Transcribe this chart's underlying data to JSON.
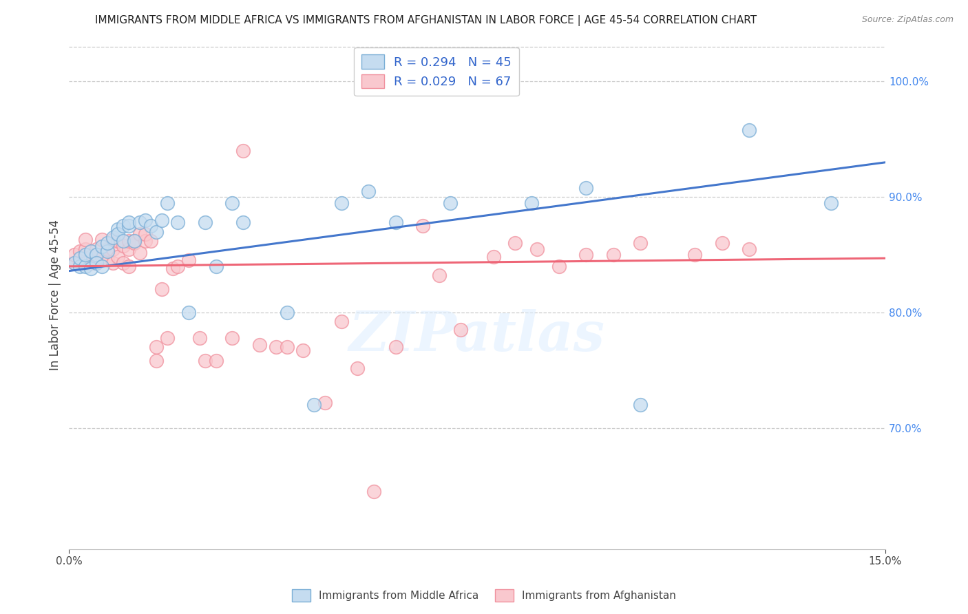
{
  "title": "IMMIGRANTS FROM MIDDLE AFRICA VS IMMIGRANTS FROM AFGHANISTAN IN LABOR FORCE | AGE 45-54 CORRELATION CHART",
  "source": "Source: ZipAtlas.com",
  "ylabel": "In Labor Force | Age 45-54",
  "legend_r_blue": "R = 0.294",
  "legend_n_blue": "N = 45",
  "legend_r_pink": "R = 0.029",
  "legend_n_pink": "N = 67",
  "legend_label_blue": "Immigrants from Middle Africa",
  "legend_label_pink": "Immigrants from Afghanistan",
  "blue_color": "#7aaed6",
  "blue_fill": "#c5dcf0",
  "pink_color": "#f0919e",
  "pink_fill": "#f9c8ce",
  "blue_line_color": "#4477cc",
  "pink_line_color": "#ee6677",
  "watermark_text": "ZIPatlas",
  "xmin": 0.0,
  "xmax": 0.15,
  "ymin": 0.595,
  "ymax": 1.035,
  "yticks": [
    0.7,
    0.8,
    0.9,
    1.0
  ],
  "ytick_labels": [
    "70.0%",
    "80.0%",
    "90.0%",
    "100.0%"
  ],
  "xticks": [
    0.0,
    0.15
  ],
  "xtick_labels": [
    "0.0%",
    "15.0%"
  ],
  "blue_x": [
    0.001,
    0.002,
    0.002,
    0.003,
    0.003,
    0.004,
    0.004,
    0.005,
    0.005,
    0.006,
    0.006,
    0.007,
    0.007,
    0.008,
    0.009,
    0.009,
    0.01,
    0.01,
    0.011,
    0.011,
    0.012,
    0.013,
    0.014,
    0.015,
    0.016,
    0.017,
    0.018,
    0.02,
    0.022,
    0.025,
    0.027,
    0.03,
    0.032,
    0.04,
    0.045,
    0.05,
    0.055,
    0.06,
    0.07,
    0.075,
    0.085,
    0.095,
    0.105,
    0.125,
    0.14
  ],
  "blue_y": [
    0.843,
    0.84,
    0.847,
    0.84,
    0.85,
    0.838,
    0.853,
    0.85,
    0.843,
    0.84,
    0.857,
    0.853,
    0.86,
    0.865,
    0.872,
    0.868,
    0.875,
    0.862,
    0.875,
    0.878,
    0.862,
    0.878,
    0.88,
    0.875,
    0.87,
    0.88,
    0.895,
    0.878,
    0.8,
    0.878,
    0.84,
    0.895,
    0.878,
    0.8,
    0.72,
    0.895,
    0.905,
    0.878,
    0.895,
    1.0,
    0.895,
    0.908,
    0.72,
    0.958,
    0.895
  ],
  "pink_x": [
    0.001,
    0.001,
    0.002,
    0.002,
    0.003,
    0.003,
    0.003,
    0.004,
    0.004,
    0.005,
    0.005,
    0.005,
    0.006,
    0.006,
    0.007,
    0.007,
    0.008,
    0.008,
    0.008,
    0.009,
    0.009,
    0.01,
    0.01,
    0.011,
    0.011,
    0.011,
    0.012,
    0.012,
    0.013,
    0.013,
    0.014,
    0.014,
    0.015,
    0.016,
    0.016,
    0.017,
    0.018,
    0.019,
    0.02,
    0.022,
    0.024,
    0.025,
    0.027,
    0.03,
    0.032,
    0.035,
    0.038,
    0.04,
    0.043,
    0.047,
    0.05,
    0.053,
    0.056,
    0.06,
    0.065,
    0.068,
    0.072,
    0.078,
    0.082,
    0.086,
    0.09,
    0.095,
    0.1,
    0.105,
    0.115,
    0.12,
    0.125
  ],
  "pink_y": [
    0.843,
    0.85,
    0.843,
    0.853,
    0.843,
    0.855,
    0.863,
    0.843,
    0.848,
    0.843,
    0.848,
    0.855,
    0.848,
    0.863,
    0.845,
    0.855,
    0.843,
    0.855,
    0.863,
    0.848,
    0.862,
    0.843,
    0.858,
    0.855,
    0.862,
    0.84,
    0.86,
    0.862,
    0.852,
    0.868,
    0.862,
    0.868,
    0.862,
    0.77,
    0.758,
    0.82,
    0.778,
    0.838,
    0.84,
    0.845,
    0.778,
    0.758,
    0.758,
    0.778,
    0.94,
    0.772,
    0.77,
    0.77,
    0.767,
    0.722,
    0.792,
    0.752,
    0.645,
    0.77,
    0.875,
    0.832,
    0.785,
    0.848,
    0.86,
    0.855,
    0.84,
    0.85,
    0.85,
    0.86,
    0.85,
    0.86,
    0.855
  ],
  "blue_trend_x0": 0.0,
  "blue_trend_y0": 0.836,
  "blue_trend_x1": 0.15,
  "blue_trend_y1": 0.93,
  "pink_trend_x0": 0.0,
  "pink_trend_y0": 0.84,
  "pink_trend_x1": 0.15,
  "pink_trend_y1": 0.847
}
